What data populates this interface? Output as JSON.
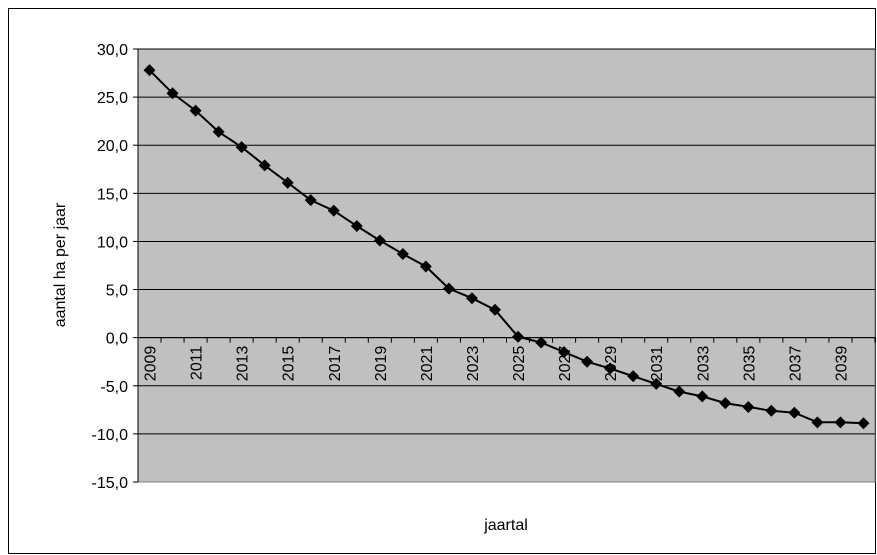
{
  "chart_data": {
    "type": "line",
    "title": "",
    "xlabel": "jaartal",
    "ylabel": "aantal ha per jaar",
    "ylim": [
      -15,
      30
    ],
    "yticks": [
      "30,0",
      "25,0",
      "20,0",
      "15,0",
      "10,0",
      "5,0",
      "0,0",
      "-5,0",
      "-10,0",
      "-15,0"
    ],
    "ytick_values": [
      30,
      25,
      20,
      15,
      10,
      5,
      0,
      -5,
      -10,
      -15
    ],
    "x": [
      2009,
      2010,
      2011,
      2012,
      2013,
      2014,
      2015,
      2016,
      2017,
      2018,
      2019,
      2020,
      2021,
      2022,
      2023,
      2024,
      2025,
      2026,
      2027,
      2028,
      2029,
      2030,
      2031,
      2032,
      2033,
      2034,
      2035,
      2036,
      2037,
      2038,
      2039,
      2040
    ],
    "xtick_labels": [
      "2009",
      "2011",
      "2013",
      "2015",
      "2017",
      "2019",
      "2021",
      "2023",
      "2025",
      "2027",
      "2029",
      "2031",
      "2033",
      "2035",
      "2037",
      "2039"
    ],
    "series": [
      {
        "values": [
          27.8,
          25.4,
          23.6,
          21.4,
          19.8,
          17.9,
          16.1,
          14.3,
          13.2,
          11.6,
          10.1,
          8.7,
          7.4,
          5.1,
          4.1,
          2.9,
          0.1,
          -0.5,
          -1.5,
          -2.5,
          -3.2,
          -4.0,
          -4.8,
          -5.6,
          -6.1,
          -6.8,
          -7.2,
          -7.6,
          -7.8,
          -8.8,
          -8.8,
          -8.9
        ]
      }
    ],
    "grid": true,
    "plot_background": "#c0c0c0",
    "line_color": "#000000",
    "marker": "diamond"
  }
}
